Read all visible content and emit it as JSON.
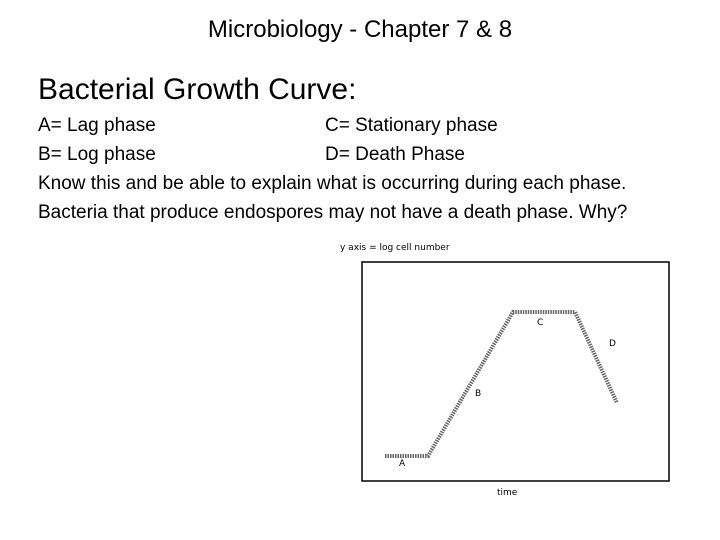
{
  "header": {
    "title": "Microbiology - Chapter 7 & 8"
  },
  "heading": "Bacterial Growth Curve:",
  "phase_rows": [
    [
      "A= Lag phase",
      "C= Stationary phase"
    ],
    [
      "B= Log phase",
      "D= Death Phase"
    ]
  ],
  "notes": [
    "Know this and be able to explain what is occurring during each phase.",
    "Bacteria that produce endospores may not have a death phase. Why?"
  ],
  "figure": {
    "y_label": "y axis = log cell number",
    "x_label": "time",
    "phase_labels": [
      "A",
      "B",
      "C",
      "D"
    ]
  }
}
